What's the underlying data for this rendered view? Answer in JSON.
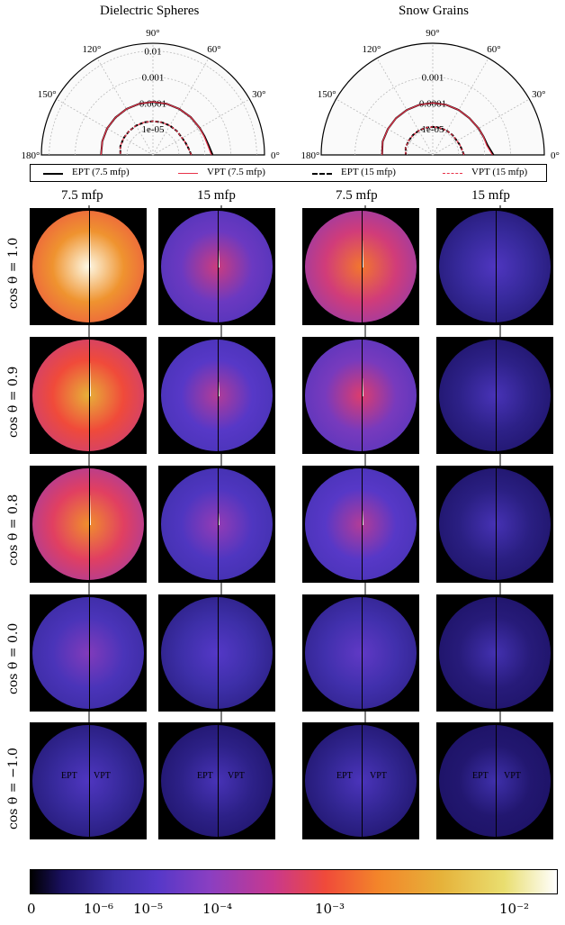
{
  "titles": {
    "left": "Dielectric Spheres",
    "right": "Snow Grains"
  },
  "legend": [
    {
      "label": "EPT (7.5 mfp)",
      "color": "#000000",
      "style": "solid"
    },
    {
      "label": "VPT (7.5 mfp)",
      "color": "#e8334a",
      "style": "solid"
    },
    {
      "label": "EPT (15 mfp)",
      "color": "#000000",
      "style": "dashed"
    },
    {
      "label": "VPT (15 mfp)",
      "color": "#e8334a",
      "style": "dashed"
    }
  ],
  "column_headers": [
    "7.5 mfp",
    "15 mfp",
    "7.5 mfp",
    "15 mfp"
  ],
  "row_headers": [
    "cos θ = 1.0",
    "cos θ = 0.9",
    "cos θ = 0.8",
    "cos θ = 0.0",
    "cos θ = −1.0"
  ],
  "panel_labels": {
    "left": "EPT",
    "right": "VPT"
  },
  "colorbar": {
    "ticks": [
      "0",
      "10⁻⁶",
      "10⁻⁵",
      "10⁻⁴",
      "10⁻³",
      "10⁻²"
    ],
    "colormap": [
      "#000000",
      "#3d2fa8",
      "#8a3fc2",
      "#f04a3a",
      "#e6b23a",
      "#ffffff"
    ]
  },
  "chart_data": [
    {
      "type": "line",
      "subtype": "polar-half",
      "title": "Dielectric Spheres",
      "angle_ticks": [
        "0°",
        "30°",
        "60°",
        "90°",
        "120°",
        "150°",
        "180°"
      ],
      "radial_ticks": [
        "0.01",
        "0.001",
        "0.0001",
        "1e-05"
      ],
      "radial_scale": "log",
      "series": [
        {
          "name": "EPT (7.5 mfp)",
          "angle_deg": [
            0,
            10,
            20,
            30,
            45,
            60,
            75,
            90,
            105,
            120,
            135,
            150,
            165,
            180
          ],
          "values": [
            0.0002,
            0.00015,
            0.00013,
            0.00012,
            0.000115,
            0.00011,
            0.00011,
            0.00011,
            0.00011,
            0.00011,
            0.00011,
            0.00011,
            0.000105,
            0.0001
          ]
        },
        {
          "name": "VPT (7.5 mfp)",
          "angle_deg": [
            0,
            10,
            20,
            30,
            45,
            60,
            75,
            90,
            105,
            120,
            135,
            150,
            165,
            180
          ],
          "values": [
            0.00018,
            0.00014,
            0.000125,
            0.00012,
            0.000115,
            0.00011,
            0.00011,
            0.00011,
            0.00011,
            0.00011,
            0.00011,
            0.00011,
            0.000105,
            0.0001
          ]
        },
        {
          "name": "EPT (15 mfp)",
          "angle_deg": [
            0,
            10,
            20,
            30,
            45,
            60,
            75,
            90,
            105,
            120,
            135,
            150,
            165,
            180
          ],
          "values": [
            3e-05,
            2.5e-05,
            2.2e-05,
            2e-05,
            2e-05,
            2e-05,
            2e-05,
            2e-05,
            2e-05,
            2e-05,
            2e-05,
            2e-05,
            2e-05,
            1.8e-05
          ]
        },
        {
          "name": "VPT (15 mfp)",
          "angle_deg": [
            0,
            10,
            20,
            30,
            45,
            60,
            75,
            90,
            105,
            120,
            135,
            150,
            165,
            180
          ],
          "values": [
            3e-05,
            2.5e-05,
            2.2e-05,
            2e-05,
            2e-05,
            2e-05,
            2e-05,
            2e-05,
            2e-05,
            2e-05,
            2e-05,
            2e-05,
            2e-05,
            1.8e-05
          ]
        }
      ]
    },
    {
      "type": "line",
      "subtype": "polar-half",
      "title": "Snow Grains",
      "angle_ticks": [
        "0°",
        "30°",
        "60°",
        "90°",
        "120°",
        "150°",
        "180°"
      ],
      "radial_ticks": [
        "0.001",
        "0.0001",
        "1e-05"
      ],
      "radial_scale": "log",
      "series": [
        {
          "name": "EPT (7.5 mfp)",
          "angle_deg": [
            0,
            10,
            20,
            30,
            45,
            60,
            75,
            90,
            105,
            120,
            135,
            150,
            165,
            180
          ],
          "values": [
            0.00022,
            0.00014,
            0.00012,
            0.00011,
            0.0001,
            0.0001,
            0.0001,
            0.0001,
            0.0001,
            0.0001,
            0.0001,
            0.0001,
            0.0001,
            9e-05
          ]
        },
        {
          "name": "VPT (7.5 mfp)",
          "angle_deg": [
            0,
            10,
            20,
            30,
            45,
            60,
            75,
            90,
            105,
            120,
            135,
            150,
            165,
            180
          ],
          "values": [
            0.0002,
            0.00013,
            0.00012,
            0.00011,
            0.0001,
            0.0001,
            0.0001,
            0.0001,
            0.0001,
            0.0001,
            0.0001,
            0.0001,
            0.0001,
            9e-05
          ]
        },
        {
          "name": "EPT (15 mfp)",
          "angle_deg": [
            0,
            10,
            20,
            30,
            45,
            60,
            75,
            90,
            105,
            120,
            135,
            150,
            165,
            180
          ],
          "values": [
            1.6e-05,
            1.4e-05,
            1.3e-05,
            1.2e-05,
            1.2e-05,
            1.2e-05,
            1.2e-05,
            1.2e-05,
            1.2e-05,
            1.2e-05,
            1.2e-05,
            1.2e-05,
            1.2e-05,
            1.1e-05
          ]
        },
        {
          "name": "VPT (15 mfp)",
          "angle_deg": [
            0,
            10,
            20,
            30,
            45,
            60,
            75,
            90,
            105,
            120,
            135,
            150,
            165,
            180
          ],
          "values": [
            1.6e-05,
            1.4e-05,
            1.3e-05,
            1.2e-05,
            1.2e-05,
            1.2e-05,
            1.2e-05,
            1.2e-05,
            1.2e-05,
            1.2e-05,
            1.2e-05,
            1.2e-05,
            1.2e-05,
            1.1e-05
          ]
        }
      ]
    },
    {
      "type": "heatmap",
      "title": "",
      "colormap": "log",
      "columns": [
        "7.5 mfp",
        "15 mfp",
        "7.5 mfp",
        "15 mfp"
      ],
      "rows": [
        "cos θ = 1.0",
        "cos θ = 0.9",
        "cos θ = 0.8",
        "cos θ = 0.0",
        "cos θ = −1.0"
      ],
      "peak_intensity": [
        [
          0.02,
          0.0003,
          0.002,
          2e-05
        ],
        [
          0.006,
          0.0002,
          0.0004,
          1.2e-05
        ],
        [
          0.003,
          0.00012,
          0.0002,
          1e-05
        ],
        [
          8e-05,
          3e-05,
          4e-05,
          8e-06
        ],
        [
          2e-05,
          1.2e-05,
          1.5e-05,
          6e-06
        ]
      ]
    }
  ]
}
